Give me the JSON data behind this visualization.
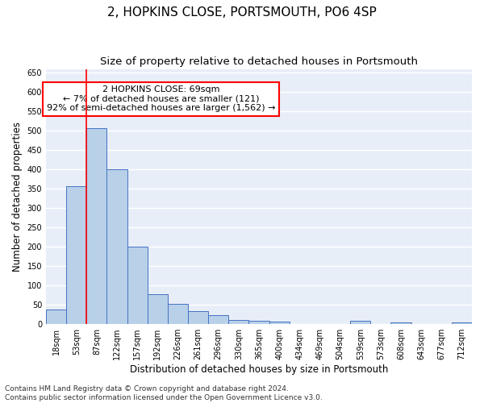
{
  "title": "2, HOPKINS CLOSE, PORTSMOUTH, PO6 4SP",
  "subtitle": "Size of property relative to detached houses in Portsmouth",
  "xlabel": "Distribution of detached houses by size in Portsmouth",
  "ylabel": "Number of detached properties",
  "categories": [
    "18sqm",
    "53sqm",
    "87sqm",
    "122sqm",
    "157sqm",
    "192sqm",
    "226sqm",
    "261sqm",
    "296sqm",
    "330sqm",
    "365sqm",
    "400sqm",
    "434sqm",
    "469sqm",
    "504sqm",
    "539sqm",
    "573sqm",
    "608sqm",
    "643sqm",
    "677sqm",
    "712sqm"
  ],
  "values": [
    38,
    357,
    507,
    400,
    200,
    78,
    53,
    33,
    23,
    10,
    9,
    6,
    0,
    0,
    0,
    8,
    0,
    5,
    0,
    0,
    5
  ],
  "bar_color": "#b8d0e8",
  "bar_edge_color": "#4472c4",
  "annotation_text": "2 HOPKINS CLOSE: 69sqm\n← 7% of detached houses are smaller (121)\n92% of semi-detached houses are larger (1,562) →",
  "annotation_box_color": "white",
  "annotation_box_edge_color": "red",
  "red_line_color": "red",
  "footer_line1": "Contains HM Land Registry data © Crown copyright and database right 2024.",
  "footer_line2": "Contains public sector information licensed under the Open Government Licence v3.0.",
  "ylim": [
    0,
    660
  ],
  "yticks": [
    0,
    50,
    100,
    150,
    200,
    250,
    300,
    350,
    400,
    450,
    500,
    550,
    600,
    650
  ],
  "background_color": "#e8eef8",
  "grid_color": "white",
  "title_fontsize": 11,
  "subtitle_fontsize": 9.5,
  "axis_label_fontsize": 8.5,
  "tick_fontsize": 7,
  "annotation_fontsize": 8,
  "footer_fontsize": 6.5
}
